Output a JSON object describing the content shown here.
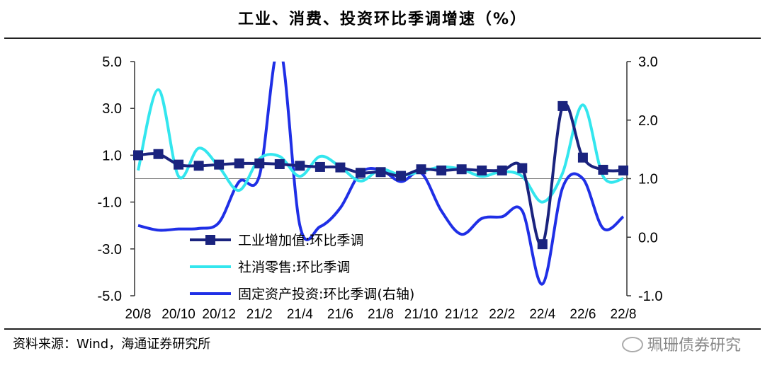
{
  "title": "工业、消费、投资环比季调增速（%）",
  "source": "资料来源：Wind，海通证券研究所",
  "watermark": "珮珊债券研究",
  "chart_data": {
    "type": "line",
    "x": [
      "20/8",
      "20/9",
      "20/10",
      "20/11",
      "20/12",
      "21/1",
      "21/2",
      "21/3",
      "21/4",
      "21/5",
      "21/6",
      "21/7",
      "21/8",
      "21/9",
      "21/10",
      "21/11",
      "21/12",
      "22/1",
      "22/2",
      "22/3",
      "22/4",
      "22/5",
      "22/6",
      "22/7",
      "22/8"
    ],
    "x_tick_labels": [
      "20/8",
      "20/10",
      "20/12",
      "21/2",
      "21/4",
      "21/6",
      "21/8",
      "21/10",
      "21/12",
      "22/2",
      "22/4",
      "22/6",
      "22/8"
    ],
    "left_axis": {
      "ylim": [
        -5,
        5
      ],
      "ticks": [
        "5.0",
        "3.0",
        "1.0",
        "-1.0",
        "-3.0",
        "-5.0"
      ]
    },
    "right_axis": {
      "ylim": [
        -1,
        3
      ],
      "ticks": [
        "3.0",
        "2.0",
        "1.0",
        "0.0",
        "-1.0"
      ]
    },
    "series": [
      {
        "name": "工业增加值:环比季调",
        "axis": "left",
        "color": "#1a237e",
        "marker": "square",
        "values": [
          1.0,
          1.05,
          0.6,
          0.55,
          0.6,
          0.65,
          0.65,
          0.62,
          0.55,
          0.5,
          0.48,
          0.25,
          0.28,
          0.12,
          0.4,
          0.35,
          0.4,
          0.35,
          0.35,
          0.45,
          -2.8,
          3.1,
          0.9,
          0.38,
          0.35
        ]
      },
      {
        "name": "社消零售:环比季调",
        "axis": "left",
        "color": "#33e6ee",
        "marker": "none",
        "values": [
          0.35,
          3.8,
          0.1,
          1.3,
          0.5,
          -0.5,
          0.85,
          0.95,
          0.1,
          0.95,
          0.5,
          -0.1,
          0.4,
          0.15,
          0.3,
          0.5,
          0.4,
          0.1,
          0.3,
          0.1,
          -1.0,
          0.25,
          3.15,
          0.1,
          0.0
        ]
      },
      {
        "name": "固定资产投资:环比季调(右轴)",
        "axis": "right",
        "color": "#1f2fe6",
        "marker": "none",
        "values": [
          0.2,
          0.12,
          0.14,
          0.15,
          0.25,
          0.95,
          1.05,
          3.25,
          0.2,
          0.18,
          0.5,
          1.1,
          1.15,
          0.95,
          1.1,
          0.45,
          0.05,
          0.32,
          0.35,
          0.45,
          -0.8,
          0.85,
          1.0,
          0.15,
          0.35
        ]
      }
    ]
  }
}
